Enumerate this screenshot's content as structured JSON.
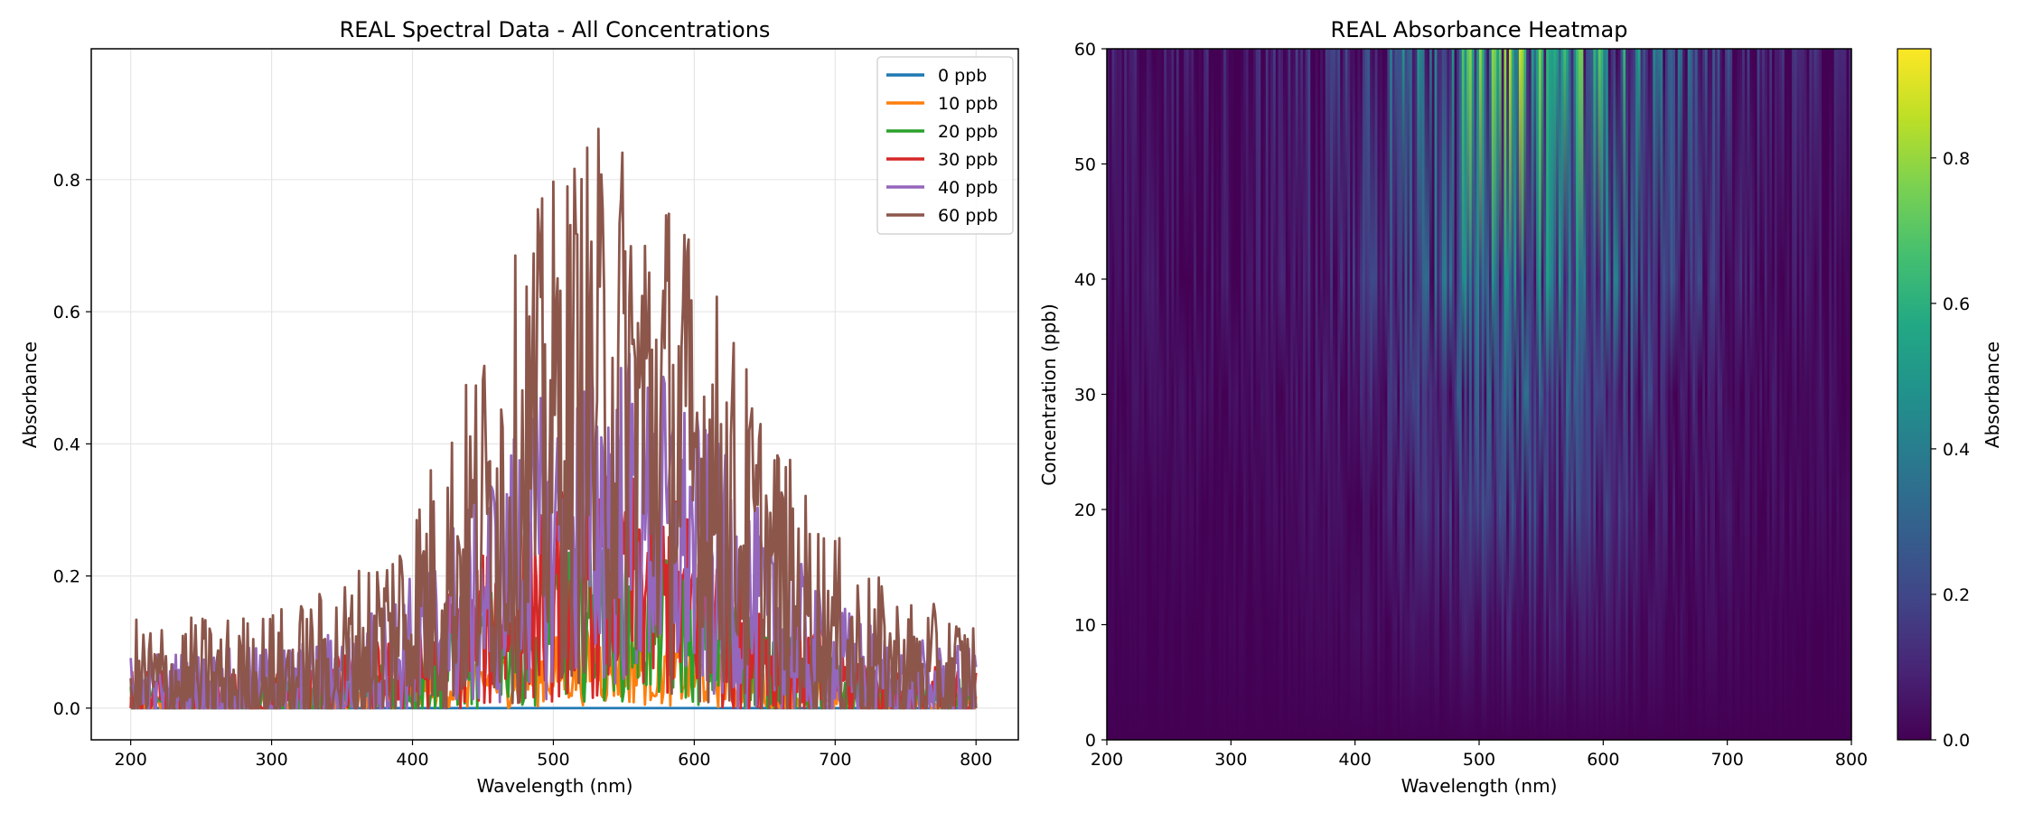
{
  "figure": {
    "left_title": "REAL Spectral Data - All Concentrations",
    "right_title": "REAL Absorbance Heatmap"
  },
  "colors": {
    "0 ppb": "#1f77b4",
    "10 ppb": "#ff7f0e",
    "20 ppb": "#2ca02c",
    "30 ppb": "#d62728",
    "40 ppb": "#9467bd",
    "60 ppb": "#8c564b",
    "grid": "#e6e6e6",
    "colormap": "viridis"
  },
  "chart_data": [
    {
      "type": "line",
      "title": "REAL Spectral Data - All Concentrations",
      "xlabel": "Wavelength (nm)",
      "ylabel": "Absorbance",
      "xlim": [
        172,
        830
      ],
      "ylim": [
        -0.048,
        0.998
      ],
      "xticks": [
        "200",
        "300",
        "400",
        "500",
        "600",
        "700",
        "800"
      ],
      "yticks": [
        "0.0",
        "0.2",
        "0.4",
        "0.6",
        "0.8"
      ],
      "grid": true,
      "legend_position": "top-right",
      "series": [
        {
          "name": "0 ppb",
          "peak_approx": 0.0,
          "x_range": [
            200,
            800
          ]
        },
        {
          "name": "10 ppb",
          "peak_approx": 0.13,
          "x_range": [
            200,
            800
          ]
        },
        {
          "name": "20 ppb",
          "peak_approx": 0.28,
          "x_range": [
            200,
            800
          ]
        },
        {
          "name": "30 ppb",
          "peak_approx": 0.39,
          "x_range": [
            200,
            800
          ]
        },
        {
          "name": "40 ppb",
          "peak_approx": 0.6,
          "x_range": [
            200,
            800
          ]
        },
        {
          "name": "60 ppb",
          "peak_approx": 0.95,
          "x_range": [
            200,
            800
          ]
        }
      ]
    },
    {
      "type": "heatmap",
      "title": "REAL Absorbance Heatmap",
      "xlabel": "Wavelength (nm)",
      "ylabel": "Concentration (ppb)",
      "xlim": [
        200,
        800
      ],
      "ylim": [
        0,
        60
      ],
      "xticks": [
        "200",
        "300",
        "400",
        "500",
        "600",
        "700",
        "800"
      ],
      "yticks": [
        "0",
        "10",
        "20",
        "30",
        "40",
        "50",
        "60"
      ],
      "concentration_rows": [
        0,
        10,
        20,
        30,
        40,
        60
      ],
      "colorbar": {
        "label": "Absorbance",
        "range": [
          0.0,
          0.95
        ],
        "ticks": [
          "0.0",
          "0.2",
          "0.4",
          "0.6",
          "0.8"
        ]
      }
    }
  ]
}
